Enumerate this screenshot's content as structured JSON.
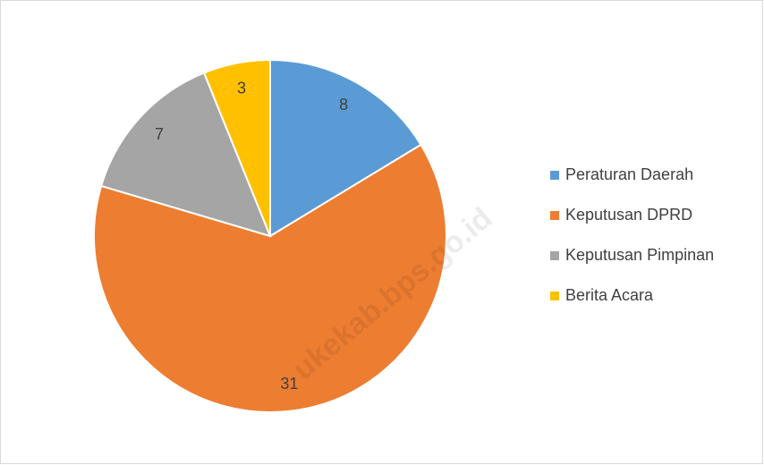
{
  "chart_data": {
    "type": "pie",
    "categories": [
      "Peraturan Daerah",
      "Keputusan DPRD",
      "Keputusan Pimpinan",
      "Berita Acara"
    ],
    "values": [
      8,
      31,
      7,
      3
    ],
    "colors": [
      "#5b9bd5",
      "#ed7d31",
      "#a5a5a5",
      "#ffc000"
    ],
    "legend": "right",
    "watermark": "ukekab.bps.go.id"
  }
}
